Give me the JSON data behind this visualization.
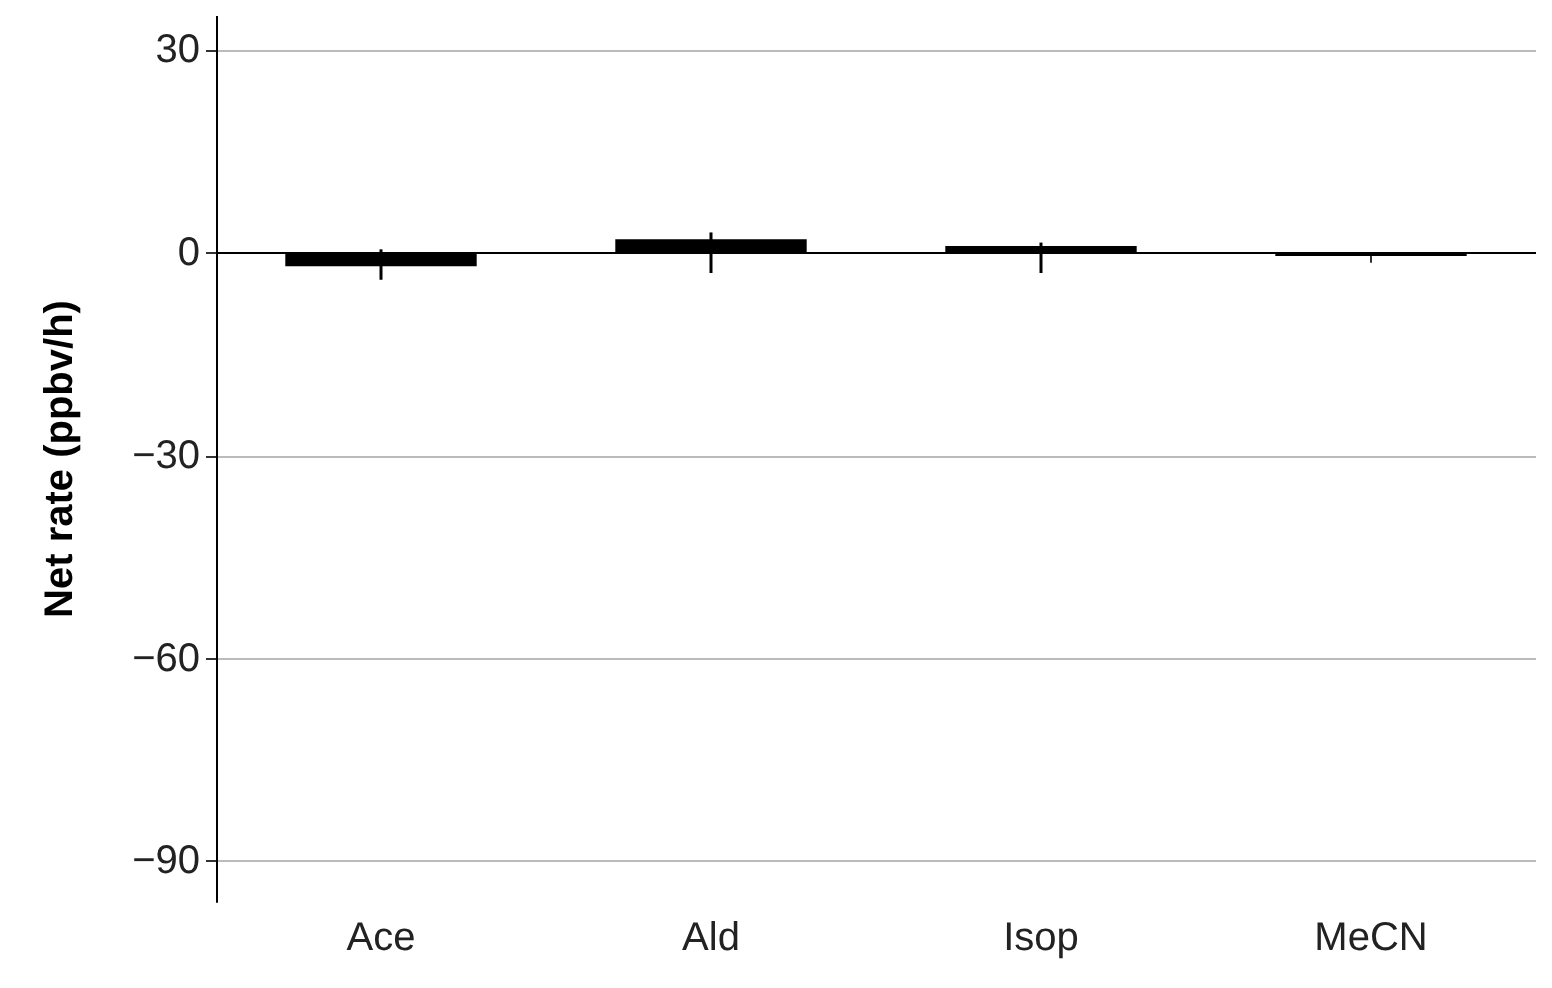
{
  "chart_data": {
    "type": "bar",
    "ylabel": "Net rate (ppbv/h)",
    "categories": [
      "Ace",
      "Ald",
      "Isop",
      "MeCN"
    ],
    "series": [
      {
        "color": "#000000",
        "values": [
          -2,
          2,
          1,
          -0.5
        ],
        "errors": [
          [
            -4,
            0.5
          ],
          [
            -3,
            3
          ],
          [
            -3,
            1.5
          ],
          null
        ]
      }
    ],
    "ylim": [
      -96,
      35
    ],
    "yticks": [
      -90,
      -60,
      -30,
      0,
      30
    ],
    "grid": "y"
  }
}
